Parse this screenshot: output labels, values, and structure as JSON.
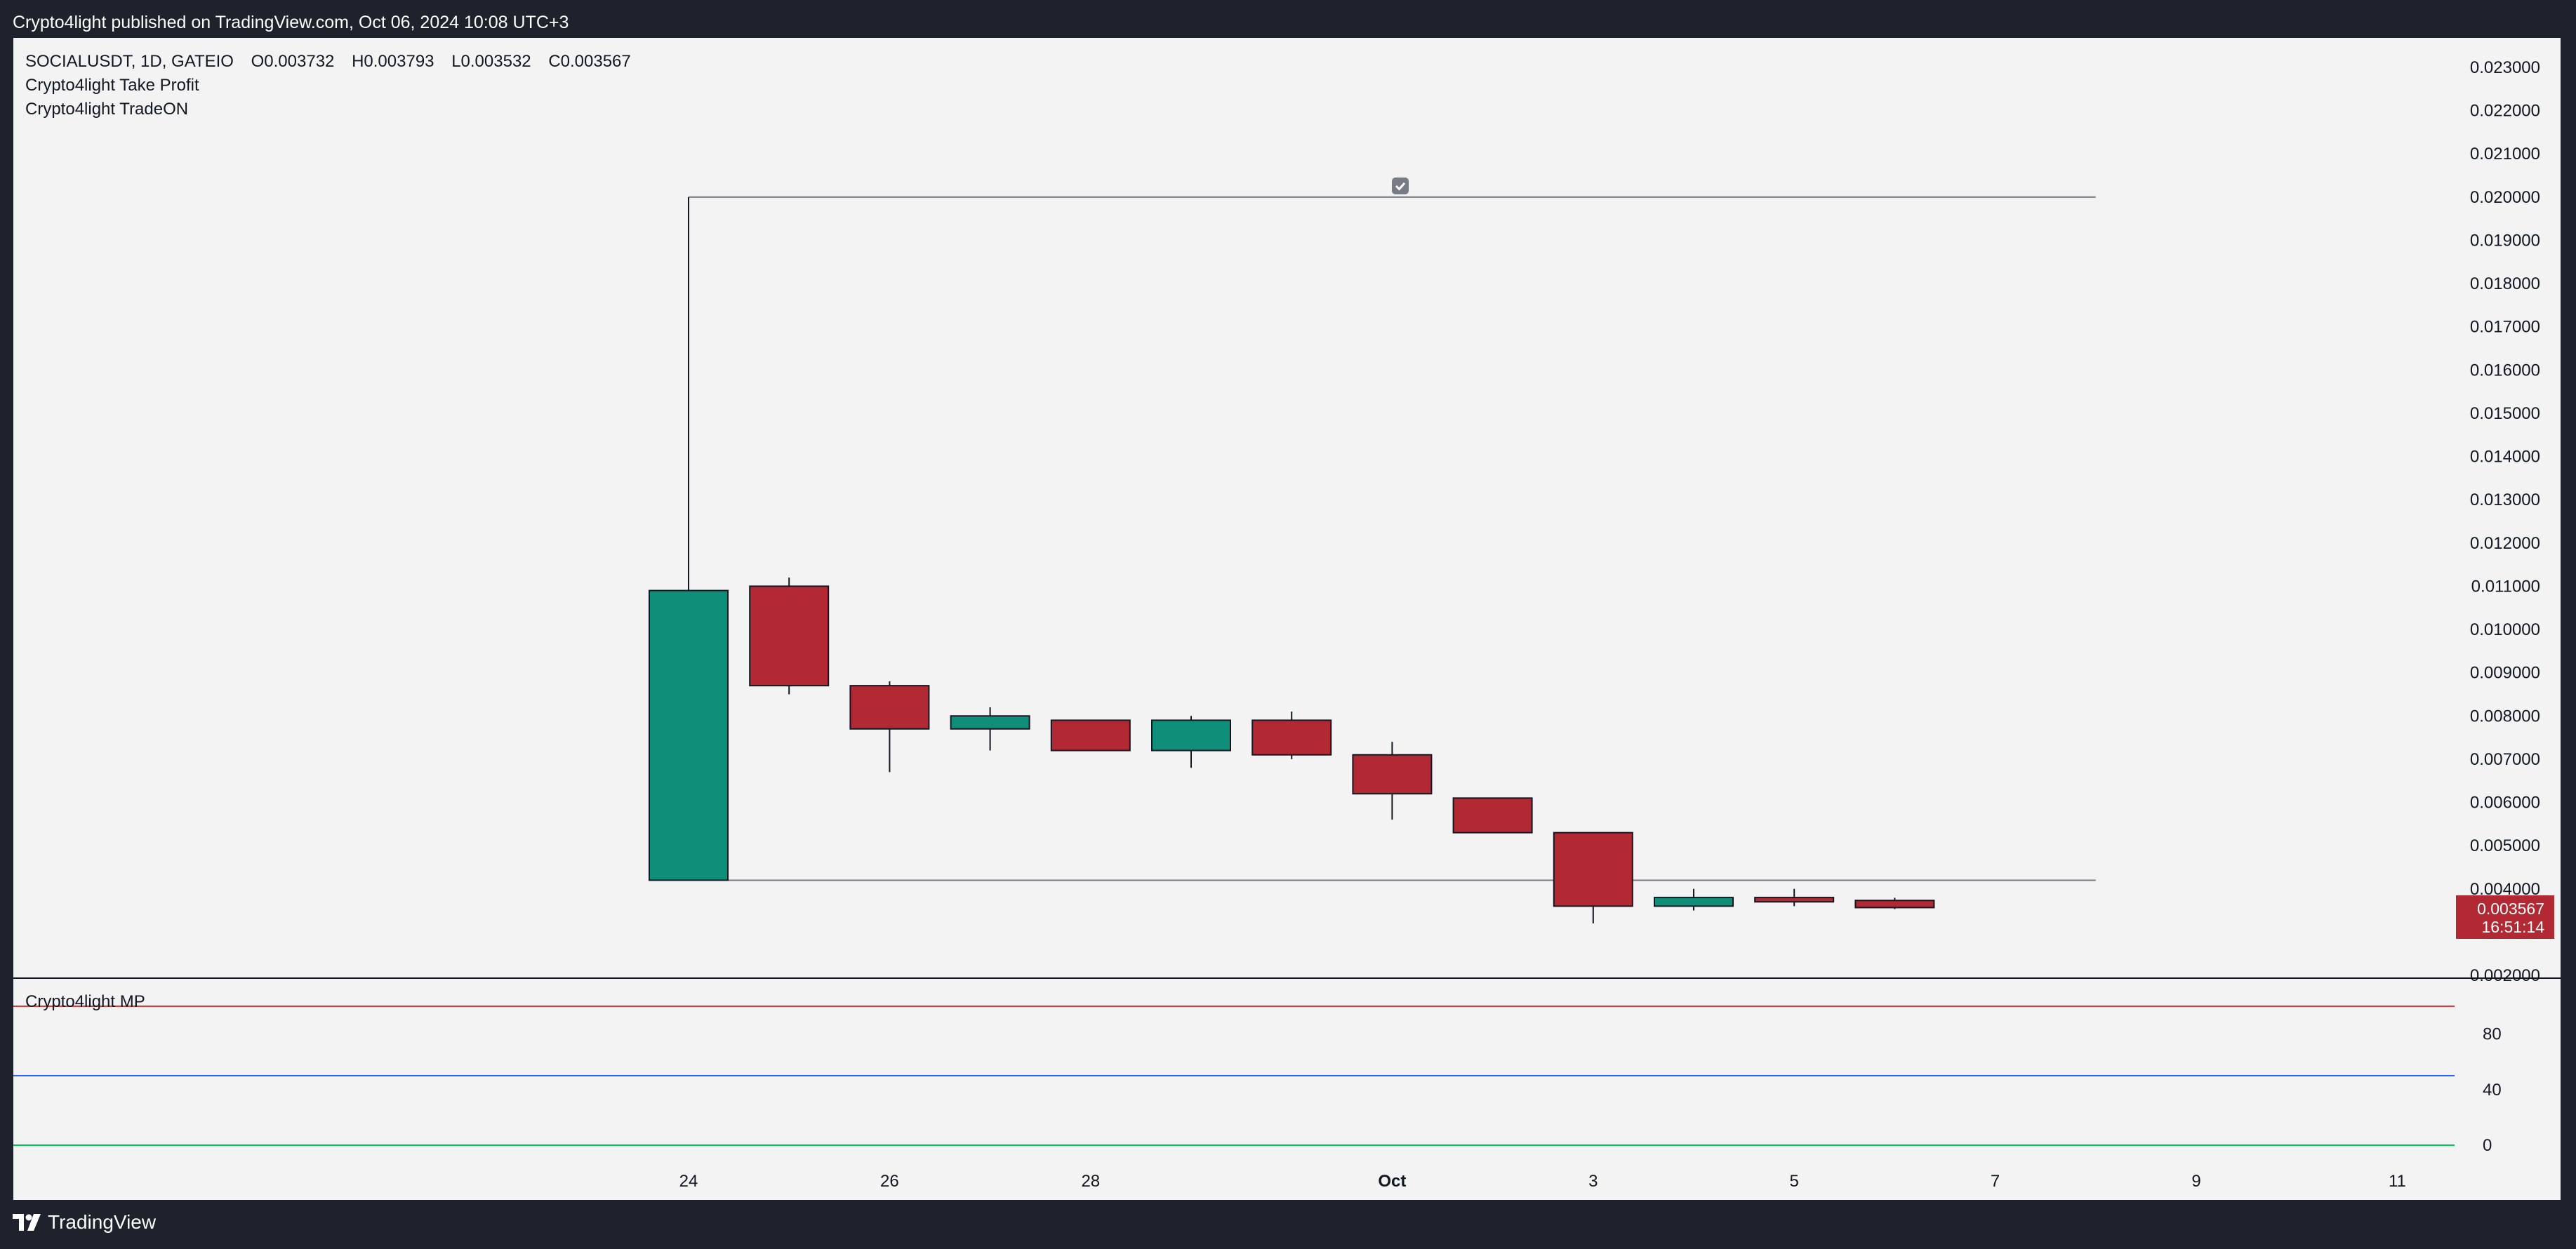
{
  "header": {
    "publish_text": "Crypto4light published on TradingView.com, Oct 06, 2024 10:08 UTC+3"
  },
  "legend": {
    "symbol": "SOCIALUSDT, 1D, GATEIO",
    "open": "O0.003732",
    "high": "H0.003793",
    "low": "L0.003532",
    "close": "C0.003567",
    "indicators": [
      "Crypto4light Take Profit",
      "Crypto4light TradeON"
    ]
  },
  "oscillator": {
    "label": "Crypto4light MP",
    "levels": [
      {
        "value": 100,
        "color": "#e53935"
      },
      {
        "value": 50,
        "color": "#2962ff"
      },
      {
        "value": 0,
        "color": "#00c853"
      }
    ],
    "ticks": [
      "80",
      "40",
      "0"
    ]
  },
  "price_badge": {
    "price": "0.003567",
    "countdown": "16:51:14"
  },
  "footer": {
    "brand": "TradingView"
  },
  "colors": {
    "up": "#0f8f79",
    "down": "#b22833",
    "background": "#f3f3f3",
    "frame": "#1e222d"
  },
  "chart_data": {
    "type": "candlestick",
    "symbol": "SOCIALUSDT",
    "interval": "1D",
    "ylim": [
      0.002,
      0.0235
    ],
    "y_ticks": [
      "0.023000",
      "0.022000",
      "0.021000",
      "0.020000",
      "0.019000",
      "0.018000",
      "0.017000",
      "0.016000",
      "0.015000",
      "0.014000",
      "0.013000",
      "0.012000",
      "0.011000",
      "0.010000",
      "0.009000",
      "0.008000",
      "0.007000",
      "0.006000",
      "0.005000",
      "0.004000",
      "0.002000"
    ],
    "x_ticks": [
      {
        "label": "24",
        "day": 0,
        "bold": false
      },
      {
        "label": "26",
        "day": 2,
        "bold": false
      },
      {
        "label": "28",
        "day": 4,
        "bold": false
      },
      {
        "label": "Oct",
        "day": 7,
        "bold": true
      },
      {
        "label": "3",
        "day": 9,
        "bold": false
      },
      {
        "label": "5",
        "day": 11,
        "bold": false
      },
      {
        "label": "7",
        "day": 13,
        "bold": false
      },
      {
        "label": "9",
        "day": 15,
        "bold": false
      },
      {
        "label": "11",
        "day": 17,
        "bold": false
      }
    ],
    "candles": [
      {
        "date": "2024-09-24",
        "open": 0.0042,
        "high": 0.02,
        "low": 0.0042,
        "close": 0.0109
      },
      {
        "date": "2024-09-25",
        "open": 0.011,
        "high": 0.0112,
        "low": 0.0085,
        "close": 0.0087
      },
      {
        "date": "2024-09-26",
        "open": 0.0087,
        "high": 0.0088,
        "low": 0.0067,
        "close": 0.0077
      },
      {
        "date": "2024-09-27",
        "open": 0.0077,
        "high": 0.0082,
        "low": 0.0072,
        "close": 0.008
      },
      {
        "date": "2024-09-28",
        "open": 0.0079,
        "high": 0.0079,
        "low": 0.0072,
        "close": 0.0072
      },
      {
        "date": "2024-09-29",
        "open": 0.0072,
        "high": 0.008,
        "low": 0.0068,
        "close": 0.0079
      },
      {
        "date": "2024-09-30",
        "open": 0.0079,
        "high": 0.0081,
        "low": 0.007,
        "close": 0.0071
      },
      {
        "date": "2024-10-01",
        "open": 0.0071,
        "high": 0.0074,
        "low": 0.0056,
        "close": 0.0062
      },
      {
        "date": "2024-10-02",
        "open": 0.0061,
        "high": 0.0061,
        "low": 0.0053,
        "close": 0.0053
      },
      {
        "date": "2024-10-03",
        "open": 0.0053,
        "high": 0.0053,
        "low": 0.0032,
        "close": 0.0036
      },
      {
        "date": "2024-10-04",
        "open": 0.0036,
        "high": 0.004,
        "low": 0.0035,
        "close": 0.0038
      },
      {
        "date": "2024-10-05",
        "open": 0.0038,
        "high": 0.004,
        "low": 0.0036,
        "close": 0.0037
      },
      {
        "date": "2024-10-06",
        "open": 0.003732,
        "high": 0.003793,
        "low": 0.003532,
        "close": 0.003567
      }
    ],
    "take_profit": {
      "upper": 0.02,
      "lower": 0.0042,
      "start_day": 0,
      "end_day": 14
    }
  }
}
